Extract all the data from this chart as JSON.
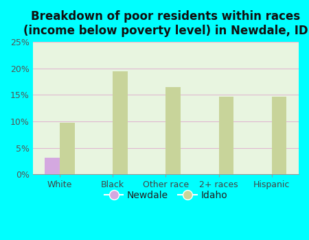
{
  "title": "Breakdown of poor residents within races\n(income below poverty level) in Newdale, ID",
  "categories": [
    "White",
    "Black",
    "Other race",
    "2+ races",
    "Hispanic"
  ],
  "newdale_values": [
    3.2,
    0,
    0,
    0,
    0
  ],
  "idaho_values": [
    9.7,
    19.4,
    16.5,
    14.6,
    14.6
  ],
  "newdale_color": "#d4a8e0",
  "idaho_color": "#c8d49a",
  "background_color": "#00ffff",
  "plot_bg_color": "#e8f5e0",
  "ylim": [
    0,
    25
  ],
  "yticks": [
    0,
    5,
    10,
    15,
    20,
    25
  ],
  "ytick_labels": [
    "0%",
    "5%",
    "10%",
    "15%",
    "20%",
    "25%"
  ],
  "grid_color": "#e0b8d0",
  "title_fontsize": 12,
  "tick_fontsize": 9,
  "legend_fontsize": 10,
  "bar_width": 0.28
}
